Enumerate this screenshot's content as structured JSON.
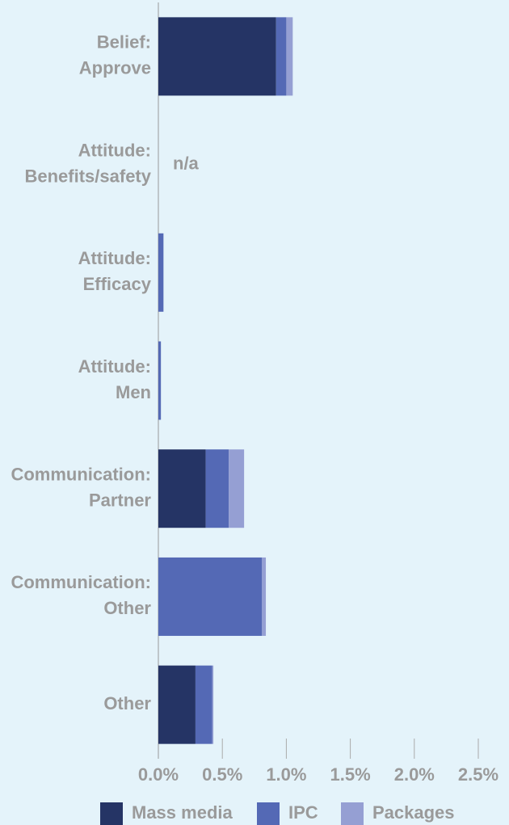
{
  "chart_data": {
    "type": "stacked-hbar",
    "categories": [
      [
        "Belief:",
        "Approve"
      ],
      [
        "Attitude:",
        "Benefits/safety"
      ],
      [
        "Attitude:",
        "Efficacy"
      ],
      [
        "Attitude:",
        "Men"
      ],
      [
        "Communication:",
        "Partner"
      ],
      [
        "Communication:",
        "Other"
      ],
      [
        "Other"
      ]
    ],
    "series": [
      {
        "name": "Mass media",
        "color": "#253465",
        "values": [
          0.92,
          null,
          0,
          0,
          0.37,
          0,
          0.29
        ]
      },
      {
        "name": "IPC",
        "color": "#5469b5",
        "values": [
          0.08,
          null,
          0.04,
          0.02,
          0.18,
          0.81,
          0.13
        ]
      },
      {
        "name": "Packages",
        "color": "#959fd3",
        "values": [
          0.05,
          null,
          0,
          0,
          0.12,
          0.03,
          0.01
        ]
      }
    ],
    "na_label": "n/a",
    "xlim": [
      0,
      2.5
    ],
    "xticks": [
      {
        "value": 0,
        "label": "0.0%"
      },
      {
        "value": 0.5,
        "label": "0.5%"
      },
      {
        "value": 1,
        "label": "1.0%"
      },
      {
        "value": 1.5,
        "label": "1.5%"
      },
      {
        "value": 2,
        "label": "2.0%"
      },
      {
        "value": 2.5,
        "label": "2.5%"
      }
    ]
  }
}
